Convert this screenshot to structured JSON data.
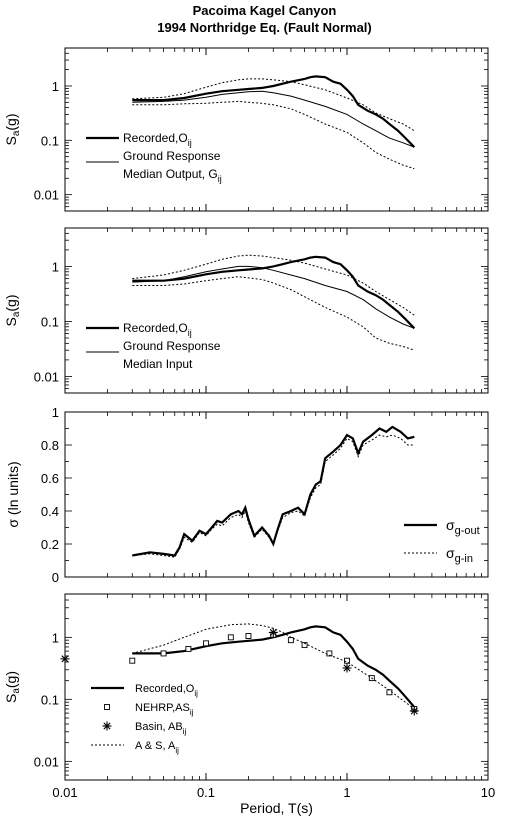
{
  "title": [
    "Pacoima Kagel Canyon",
    "1994 Northridge Eq. (Fault Normal)"
  ],
  "xlabel": "Period, T(s)",
  "x_ticks": [
    "0.01",
    "0.1",
    "1",
    "10"
  ],
  "colors": {
    "line": "#000000",
    "background": "#ffffff"
  },
  "chart_data": [
    {
      "type": "line",
      "panel": 1,
      "ylabel": "Sa(g)",
      "yscale": "log",
      "ylim": [
        0.005,
        5
      ],
      "xscale": "log",
      "xlim": [
        0.01,
        10
      ],
      "y_ticks": [
        "0.01",
        "0.1",
        "1"
      ],
      "legend": [
        {
          "series": "Recorded",
          "style": "thick",
          "text": "Recorded,O",
          "sub": "ij"
        },
        {
          "series": "Ground Response",
          "style": "thin",
          "text": "Ground Response",
          "text2": "Median Output, G",
          "sub2": "ij"
        }
      ],
      "series": [
        {
          "name": "Recorded",
          "style": "thick",
          "x": [
            0.03,
            0.05,
            0.07,
            0.1,
            0.13,
            0.17,
            0.2,
            0.25,
            0.3,
            0.35,
            0.4,
            0.5,
            0.55,
            0.6,
            0.7,
            0.8,
            0.9,
            1.0,
            1.1,
            1.2,
            1.4,
            1.6,
            1.8,
            2.0,
            2.3,
            2.6,
            3.0
          ],
          "y": [
            0.55,
            0.55,
            0.6,
            0.72,
            0.8,
            0.85,
            0.88,
            0.92,
            1.0,
            1.1,
            1.2,
            1.35,
            1.45,
            1.5,
            1.45,
            1.2,
            1.1,
            0.85,
            0.65,
            0.45,
            0.35,
            0.3,
            0.25,
            0.2,
            0.15,
            0.11,
            0.075
          ]
        },
        {
          "name": "Ground Response",
          "style": "thin",
          "x": [
            0.03,
            0.05,
            0.07,
            0.1,
            0.13,
            0.17,
            0.2,
            0.25,
            0.3,
            0.4,
            0.5,
            0.7,
            1.0,
            1.3,
            1.6,
            2.0,
            2.5,
            3.0
          ],
          "y": [
            0.5,
            0.52,
            0.55,
            0.62,
            0.7,
            0.75,
            0.78,
            0.8,
            0.75,
            0.65,
            0.55,
            0.42,
            0.3,
            0.2,
            0.15,
            0.11,
            0.09,
            0.075
          ]
        },
        {
          "name": "Ground Response upper",
          "style": "dotted",
          "x": [
            0.03,
            0.05,
            0.07,
            0.1,
            0.13,
            0.17,
            0.2,
            0.25,
            0.3,
            0.4,
            0.5,
            0.7,
            1.0,
            1.3,
            1.6,
            2.0,
            2.5,
            3.0
          ],
          "y": [
            0.58,
            0.62,
            0.72,
            0.95,
            1.15,
            1.3,
            1.35,
            1.35,
            1.3,
            1.2,
            1.05,
            0.85,
            0.6,
            0.45,
            0.32,
            0.25,
            0.2,
            0.15
          ]
        },
        {
          "name": "Ground Response lower",
          "style": "dotted",
          "x": [
            0.03,
            0.05,
            0.07,
            0.1,
            0.13,
            0.17,
            0.2,
            0.25,
            0.3,
            0.4,
            0.5,
            0.7,
            1.0,
            1.3,
            1.6,
            2.0,
            2.5,
            3.0
          ],
          "y": [
            0.45,
            0.45,
            0.47,
            0.48,
            0.5,
            0.52,
            0.5,
            0.48,
            0.45,
            0.38,
            0.3,
            0.2,
            0.14,
            0.09,
            0.06,
            0.045,
            0.035,
            0.03
          ]
        }
      ]
    },
    {
      "type": "line",
      "panel": 2,
      "ylabel": "Sa(g)",
      "yscale": "log",
      "ylim": [
        0.005,
        5
      ],
      "xscale": "log",
      "xlim": [
        0.01,
        10
      ],
      "y_ticks": [
        "0.01",
        "0.1",
        "1"
      ],
      "legend": [
        {
          "series": "Recorded",
          "style": "thick",
          "text": "Recorded,O",
          "sub": "ij"
        },
        {
          "series": "Ground Response",
          "style": "thin",
          "text": "Ground Response",
          "text2": "Median Input"
        }
      ],
      "series": [
        {
          "name": "Recorded",
          "style": "thick",
          "x": [
            0.03,
            0.05,
            0.07,
            0.1,
            0.13,
            0.17,
            0.2,
            0.25,
            0.3,
            0.35,
            0.4,
            0.5,
            0.55,
            0.6,
            0.7,
            0.8,
            0.9,
            1.0,
            1.1,
            1.2,
            1.4,
            1.6,
            1.8,
            2.0,
            2.3,
            2.6,
            3.0
          ],
          "y": [
            0.55,
            0.55,
            0.6,
            0.72,
            0.8,
            0.85,
            0.88,
            0.92,
            1.0,
            1.1,
            1.2,
            1.35,
            1.45,
            1.5,
            1.45,
            1.2,
            1.1,
            0.85,
            0.65,
            0.45,
            0.35,
            0.3,
            0.25,
            0.2,
            0.15,
            0.11,
            0.075
          ]
        },
        {
          "name": "Ground Response",
          "style": "thin",
          "x": [
            0.03,
            0.05,
            0.07,
            0.1,
            0.13,
            0.17,
            0.2,
            0.25,
            0.3,
            0.4,
            0.5,
            0.7,
            1.0,
            1.3,
            1.6,
            2.0,
            2.5,
            3.0
          ],
          "y": [
            0.52,
            0.55,
            0.65,
            0.8,
            0.9,
            1.0,
            1.0,
            0.95,
            0.85,
            0.7,
            0.6,
            0.45,
            0.35,
            0.25,
            0.17,
            0.12,
            0.09,
            0.075
          ]
        },
        {
          "name": "Ground Response upper",
          "style": "dotted",
          "x": [
            0.03,
            0.05,
            0.07,
            0.1,
            0.13,
            0.17,
            0.2,
            0.25,
            0.3,
            0.4,
            0.5,
            0.7,
            1.0,
            1.3,
            1.6,
            2.0,
            2.5,
            3.0
          ],
          "y": [
            0.6,
            0.7,
            0.85,
            1.1,
            1.35,
            1.55,
            1.6,
            1.55,
            1.45,
            1.3,
            1.15,
            0.9,
            0.7,
            0.5,
            0.35,
            0.25,
            0.18,
            0.13
          ]
        },
        {
          "name": "Ground Response lower",
          "style": "dotted",
          "x": [
            0.03,
            0.05,
            0.07,
            0.1,
            0.13,
            0.17,
            0.2,
            0.25,
            0.3,
            0.4,
            0.5,
            0.7,
            1.0,
            1.3,
            1.6,
            2.0,
            2.5,
            3.0
          ],
          "y": [
            0.45,
            0.45,
            0.48,
            0.55,
            0.6,
            0.65,
            0.62,
            0.58,
            0.5,
            0.38,
            0.28,
            0.18,
            0.12,
            0.08,
            0.05,
            0.04,
            0.035,
            0.03
          ]
        }
      ]
    },
    {
      "type": "line",
      "panel": 3,
      "ylabel": "σ (ln units)",
      "yscale": "linear",
      "ylim": [
        0,
        1
      ],
      "xscale": "log",
      "xlim": [
        0.01,
        10
      ],
      "y_ticks": [
        "0",
        "0.2",
        "0.4",
        "0.6",
        "0.8",
        "1"
      ],
      "legend": [
        {
          "series": "σg-out",
          "style": "thick",
          "text": "σ",
          "sub": "g-out"
        },
        {
          "series": "σg-in",
          "style": "dotted",
          "text": "σ",
          "sub": "g-in"
        }
      ],
      "series": [
        {
          "name": "σg-out",
          "style": "thick",
          "x": [
            0.03,
            0.04,
            0.05,
            0.06,
            0.065,
            0.07,
            0.08,
            0.09,
            0.1,
            0.11,
            0.12,
            0.13,
            0.15,
            0.17,
            0.18,
            0.19,
            0.2,
            0.22,
            0.25,
            0.28,
            0.3,
            0.32,
            0.35,
            0.4,
            0.45,
            0.5,
            0.55,
            0.6,
            0.65,
            0.7,
            0.8,
            0.9,
            1.0,
            1.1,
            1.2,
            1.3,
            1.5,
            1.7,
            1.9,
            2.1,
            2.4,
            2.7,
            3.0
          ],
          "y": [
            0.13,
            0.15,
            0.14,
            0.13,
            0.18,
            0.26,
            0.22,
            0.28,
            0.26,
            0.3,
            0.34,
            0.33,
            0.38,
            0.4,
            0.38,
            0.42,
            0.35,
            0.25,
            0.3,
            0.25,
            0.2,
            0.28,
            0.38,
            0.4,
            0.42,
            0.38,
            0.5,
            0.56,
            0.58,
            0.72,
            0.76,
            0.8,
            0.86,
            0.84,
            0.75,
            0.82,
            0.86,
            0.9,
            0.88,
            0.91,
            0.88,
            0.84,
            0.85
          ]
        },
        {
          "name": "σg-in",
          "style": "dotted",
          "x": [
            0.03,
            0.04,
            0.05,
            0.06,
            0.065,
            0.07,
            0.08,
            0.09,
            0.1,
            0.11,
            0.12,
            0.13,
            0.15,
            0.17,
            0.18,
            0.19,
            0.2,
            0.22,
            0.25,
            0.28,
            0.3,
            0.32,
            0.35,
            0.4,
            0.45,
            0.5,
            0.55,
            0.6,
            0.65,
            0.7,
            0.8,
            0.9,
            1.0,
            1.1,
            1.2,
            1.3,
            1.5,
            1.7,
            1.9,
            2.1,
            2.4,
            2.7,
            3.0
          ],
          "y": [
            0.13,
            0.14,
            0.13,
            0.12,
            0.17,
            0.24,
            0.21,
            0.27,
            0.25,
            0.29,
            0.32,
            0.31,
            0.36,
            0.38,
            0.36,
            0.4,
            0.33,
            0.24,
            0.29,
            0.24,
            0.2,
            0.27,
            0.36,
            0.39,
            0.4,
            0.37,
            0.48,
            0.54,
            0.56,
            0.7,
            0.74,
            0.78,
            0.84,
            0.82,
            0.73,
            0.8,
            0.83,
            0.86,
            0.85,
            0.86,
            0.84,
            0.8,
            0.8
          ]
        }
      ]
    },
    {
      "type": "line",
      "panel": 4,
      "ylabel": "Sa(g)",
      "yscale": "log",
      "ylim": [
        0.005,
        5
      ],
      "xscale": "log",
      "xlim": [
        0.01,
        10
      ],
      "y_ticks": [
        "0.01",
        "0.1",
        "1"
      ],
      "legend": [
        {
          "series": "Recorded",
          "style": "thick",
          "text": "Recorded,O",
          "sub": "ij"
        },
        {
          "series": "NEHRP",
          "style": "square",
          "text": "NEHRP,AS",
          "sub": "ij"
        },
        {
          "series": "Basin",
          "style": "star",
          "text": "Basin, AB",
          "sub": "ij"
        },
        {
          "series": "A & S",
          "style": "dotted",
          "text": "A & S, A",
          "sub": "ij"
        }
      ],
      "series": [
        {
          "name": "Recorded",
          "style": "thick",
          "x": [
            0.03,
            0.05,
            0.07,
            0.1,
            0.13,
            0.17,
            0.2,
            0.25,
            0.3,
            0.35,
            0.4,
            0.5,
            0.55,
            0.6,
            0.7,
            0.8,
            0.9,
            1.0,
            1.1,
            1.2,
            1.4,
            1.6,
            1.8,
            2.0,
            2.3,
            2.6,
            3.0
          ],
          "y": [
            0.55,
            0.55,
            0.6,
            0.72,
            0.8,
            0.85,
            0.88,
            0.92,
            1.0,
            1.1,
            1.2,
            1.35,
            1.45,
            1.5,
            1.45,
            1.2,
            1.1,
            0.85,
            0.65,
            0.45,
            0.35,
            0.3,
            0.25,
            0.2,
            0.15,
            0.11,
            0.075
          ]
        },
        {
          "name": "NEHRP",
          "style": "square",
          "x": [
            0.03,
            0.05,
            0.075,
            0.1,
            0.15,
            0.2,
            0.3,
            0.4,
            0.5,
            0.75,
            1.0,
            1.5,
            2.0,
            3.0
          ],
          "y": [
            0.42,
            0.55,
            0.65,
            0.8,
            1.0,
            1.05,
            1.1,
            0.9,
            0.75,
            0.55,
            0.42,
            0.22,
            0.13,
            0.07
          ]
        },
        {
          "name": "Basin",
          "style": "star",
          "x": [
            0.01,
            0.3,
            1.0,
            3.0
          ],
          "y": [
            0.45,
            1.2,
            0.32,
            0.065
          ]
        },
        {
          "name": "A & S",
          "style": "dotted",
          "x": [
            0.03,
            0.05,
            0.07,
            0.1,
            0.15,
            0.2,
            0.25,
            0.3,
            0.35,
            0.4,
            0.5,
            0.7,
            1.0,
            1.5,
            2.0,
            3.0
          ],
          "y": [
            0.55,
            0.75,
            1.0,
            1.35,
            1.6,
            1.65,
            1.55,
            1.4,
            1.2,
            1.0,
            0.8,
            0.55,
            0.4,
            0.22,
            0.14,
            0.07
          ]
        }
      ]
    }
  ]
}
